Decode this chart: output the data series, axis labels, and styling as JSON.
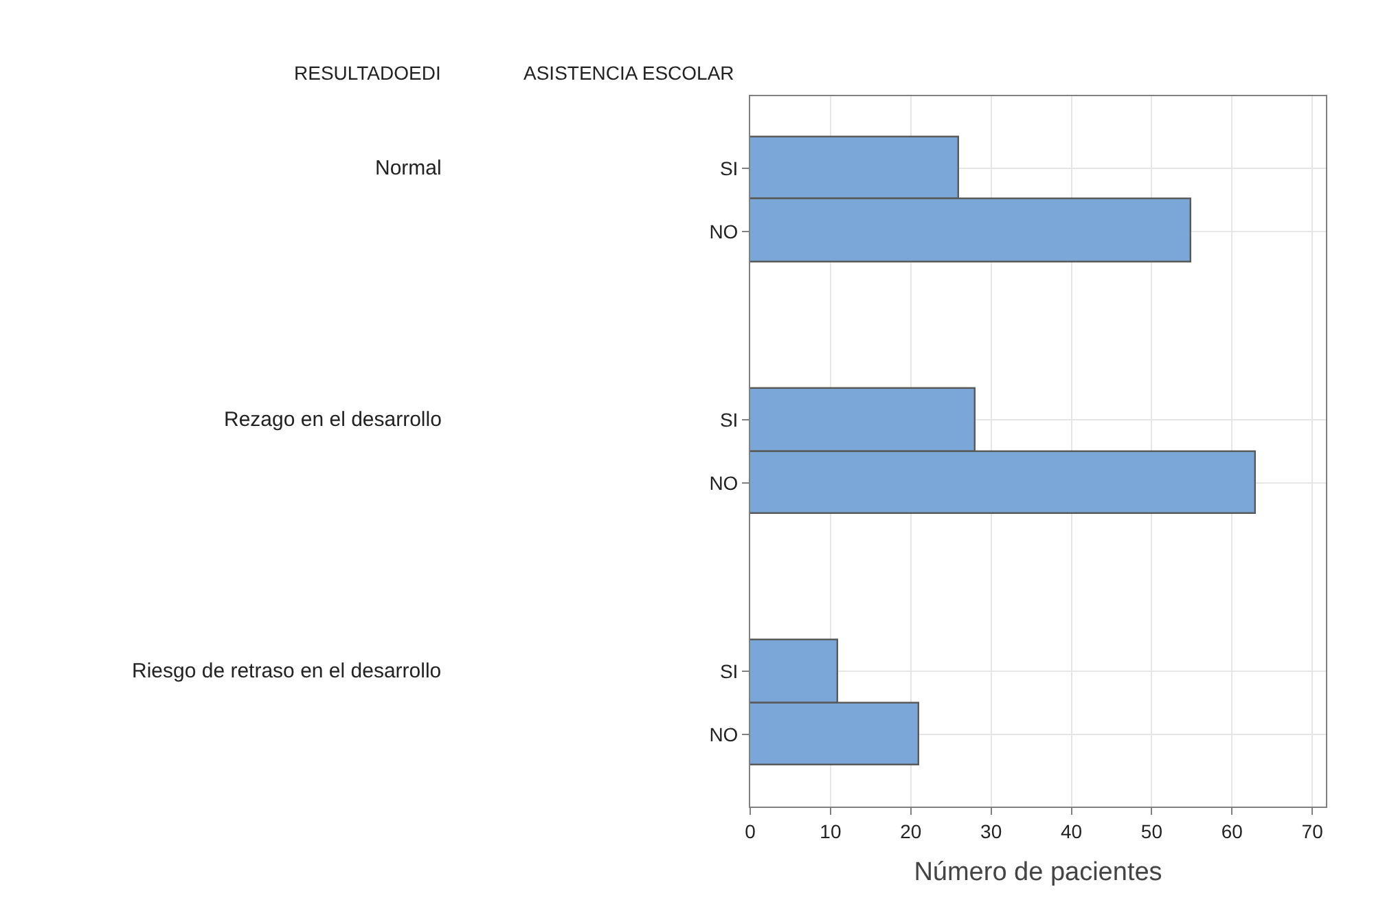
{
  "chart_data": {
    "type": "bar",
    "orientation": "horizontal",
    "categories": [
      "SI",
      "NO",
      null,
      null,
      "SI",
      "NO",
      null,
      null,
      "SI",
      "NO"
    ],
    "values": [
      26,
      55,
      null,
      null,
      28,
      63,
      null,
      null,
      11,
      21
    ],
    "color": "#7ba7d8",
    "xlabel": "Número de pacientes",
    "xlim": [
      0,
      71.7
    ],
    "xticks": [
      0,
      10,
      20,
      30,
      40,
      50,
      60,
      70
    ],
    "grid": true,
    "legend": false,
    "annotations": [
      "RESULTADOEDI",
      "ASISTENCIA ESCOLAR",
      "Normal",
      "Rezago en el desarrollo",
      "Riesgo de retraso en el desarrollo"
    ]
  }
}
